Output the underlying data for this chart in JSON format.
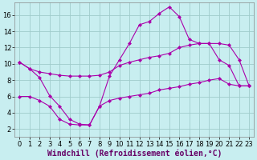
{
  "xlabel": "Windchill (Refroidissement éolien,°C)",
  "bg_color": "#c8eef0",
  "line_color": "#aa00aa",
  "grid_color": "#a0cccc",
  "xlim": [
    -0.5,
    23.5
  ],
  "ylim": [
    1.0,
    17.5
  ],
  "xticks": [
    0,
    1,
    2,
    3,
    4,
    5,
    6,
    7,
    8,
    9,
    10,
    11,
    12,
    13,
    14,
    15,
    16,
    17,
    18,
    19,
    20,
    21,
    22,
    23
  ],
  "yticks": [
    2,
    4,
    6,
    8,
    10,
    12,
    14,
    16
  ],
  "series": [
    {
      "x": [
        0,
        1,
        2,
        3,
        4,
        5,
        6,
        7,
        8,
        9,
        10,
        11,
        12,
        13,
        14,
        15,
        16,
        17,
        18,
        19,
        20,
        21,
        22,
        23
      ],
      "y": [
        10.2,
        9.4,
        8.3,
        6.1,
        4.8,
        3.2,
        2.6,
        2.5,
        4.8,
        8.5,
        10.5,
        12.5,
        14.8,
        15.2,
        16.2,
        17.0,
        15.8,
        13.0,
        12.5,
        12.5,
        10.5,
        9.8,
        7.3,
        7.3
      ]
    },
    {
      "x": [
        0,
        1,
        2,
        3,
        4,
        5,
        6,
        7,
        8,
        9,
        10,
        11,
        12,
        13,
        14,
        15,
        16,
        17,
        18,
        19,
        20,
        21,
        22,
        23
      ],
      "y": [
        10.2,
        9.4,
        9.0,
        8.8,
        8.6,
        8.5,
        8.5,
        8.5,
        8.6,
        9.0,
        9.8,
        10.2,
        10.5,
        10.8,
        11.0,
        11.3,
        12.0,
        12.3,
        12.5,
        12.5,
        12.5,
        12.3,
        10.5,
        7.3
      ]
    },
    {
      "x": [
        0,
        1,
        2,
        3,
        4,
        5,
        6,
        7,
        8,
        9,
        10,
        11,
        12,
        13,
        14,
        15,
        16,
        17,
        18,
        19,
        20,
        21,
        22,
        23
      ],
      "y": [
        6.0,
        6.0,
        5.5,
        4.8,
        3.2,
        2.6,
        2.5,
        2.5,
        4.8,
        5.5,
        5.8,
        6.0,
        6.2,
        6.4,
        6.8,
        7.0,
        7.2,
        7.5,
        7.7,
        8.0,
        8.2,
        7.5,
        7.3,
        7.3
      ]
    }
  ],
  "xlabel_fontsize": 7,
  "tick_fontsize": 6,
  "marker": "D",
  "marker_size": 2,
  "linewidth": 0.8
}
